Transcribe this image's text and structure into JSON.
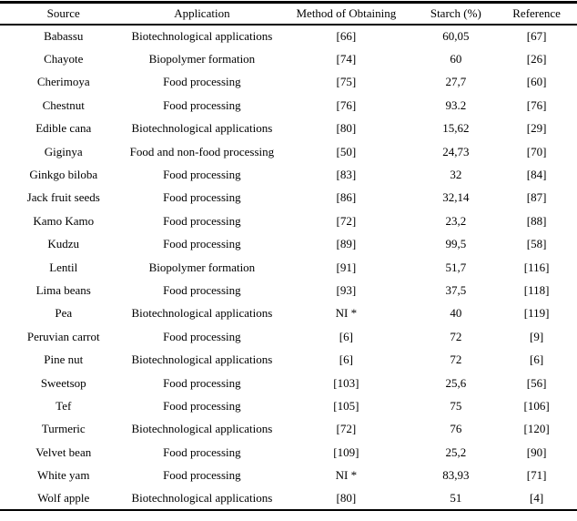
{
  "table": {
    "columns": [
      "Source",
      "Application",
      "Method of Obtaining",
      "Starch (%)",
      "Reference"
    ],
    "rows": [
      [
        "Babassu",
        "Biotechnological applications",
        "[66]",
        "60,05",
        "[67]"
      ],
      [
        "Chayote",
        "Biopolymer formation",
        "[74]",
        "60",
        "[26]"
      ],
      [
        "Cherimoya",
        "Food processing",
        "[75]",
        "27,7",
        "[60]"
      ],
      [
        "Chestnut",
        "Food processing",
        "[76]",
        "93.2",
        "[76]"
      ],
      [
        "Edible cana",
        "Biotechnological applications",
        "[80]",
        "15,62",
        "[29]"
      ],
      [
        "Giginya",
        "Food and non-food processing",
        "[50]",
        "24,73",
        "[70]"
      ],
      [
        "Ginkgo biloba",
        "Food processing",
        "[83]",
        "32",
        "[84]"
      ],
      [
        "Jack fruit seeds",
        "Food processing",
        "[86]",
        "32,14",
        "[87]"
      ],
      [
        "Kamo Kamo",
        "Food processing",
        "[72]",
        "23,2",
        "[88]"
      ],
      [
        "Kudzu",
        "Food processing",
        "[89]",
        "99,5",
        "[58]"
      ],
      [
        "Lentil",
        "Biopolymer formation",
        "[91]",
        "51,7",
        "[116]"
      ],
      [
        "Lima beans",
        "Food processing",
        "[93]",
        "37,5",
        "[118]"
      ],
      [
        "Pea",
        "Biotechnological applications",
        "NI *",
        "40",
        "[119]"
      ],
      [
        "Peruvian carrot",
        "Food processing",
        "[6]",
        "72",
        "[9]"
      ],
      [
        "Pine nut",
        "Biotechnological applications",
        "[6]",
        "72",
        "[6]"
      ],
      [
        "Sweetsop",
        "Food processing",
        "[103]",
        "25,6",
        "[56]"
      ],
      [
        "Tef",
        "Food processing",
        "[105]",
        "75",
        "[106]"
      ],
      [
        "Turmeric",
        "Biotechnological applications",
        "[72]",
        "76",
        "[120]"
      ],
      [
        "Velvet bean",
        "Food processing",
        "[109]",
        "25,2",
        "[90]"
      ],
      [
        "White yam",
        "Food processing",
        "NI *",
        "83,93",
        "[71]"
      ],
      [
        "Wolf apple",
        "Biotechnological applications",
        "[80]",
        "51",
        "[4]"
      ]
    ]
  }
}
